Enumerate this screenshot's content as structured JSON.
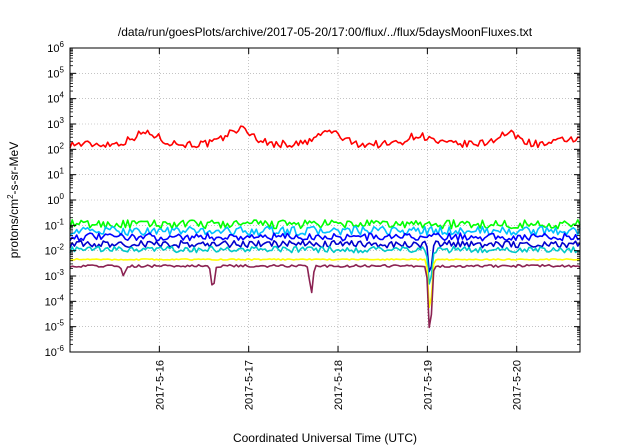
{
  "chart_data": {
    "type": "line",
    "title": "/data/run/goesPlots/archive/2017-05-20/17:00/flux/../flux/5daysMoonFluxes.txt",
    "xlabel": "Coordinated Universal Time (UTC)",
    "ylabel_main": "protons/cm",
    "ylabel_sup": "2",
    "ylabel_rest": "-s-sr-MeV",
    "yscale": "log",
    "ylim": [
      1e-06,
      1000000.0
    ],
    "y_ticks": [
      {
        "exp": "-6",
        "value": 1e-06
      },
      {
        "exp": "-5",
        "value": 1e-05
      },
      {
        "exp": "-4",
        "value": 0.0001
      },
      {
        "exp": "-3",
        "value": 0.001
      },
      {
        "exp": "-2",
        "value": 0.01
      },
      {
        "exp": "-1",
        "value": 0.1
      },
      {
        "exp": "0",
        "value": 1
      },
      {
        "exp": "1",
        "value": 10
      },
      {
        "exp": "2",
        "value": 100
      },
      {
        "exp": "3",
        "value": 1000
      },
      {
        "exp": "4",
        "value": 10000
      },
      {
        "exp": "5",
        "value": 100000
      },
      {
        "exp": "6",
        "value": 1000000
      }
    ],
    "y_tick_base": "10",
    "xlim": [
      "2017-05-15 00:00",
      "2017-05-20 17:00"
    ],
    "x_ticks": [
      "2017-5-16",
      "2017-5-17",
      "2017-5-18",
      "2017-5-19",
      "2017-5-20"
    ],
    "grid": true,
    "series": [
      {
        "color": "#ff0000",
        "base": 160,
        "noise": 0.3,
        "bumps": [
          [
            0.85,
            2.8,
            0.2
          ],
          [
            1.9,
            4.0,
            0.2
          ],
          [
            2.9,
            3.2,
            0.18
          ],
          [
            3.9,
            2.2,
            0.18
          ],
          [
            4.9,
            2.6,
            0.18
          ],
          [
            5.6,
            1.6,
            0.15
          ]
        ],
        "dips": []
      },
      {
        "color": "#00ff00",
        "base": 0.11,
        "noise": 0.35,
        "bumps": [],
        "dips": []
      },
      {
        "color": "#00bfff",
        "base": 0.06,
        "noise": 0.35,
        "bumps": [],
        "dips": []
      },
      {
        "color": "#0000ff",
        "base": 0.035,
        "noise": 0.3,
        "bumps": [],
        "dips": []
      },
      {
        "color": "#0000cd",
        "base": 0.018,
        "noise": 0.28,
        "bumps": [],
        "dips": [
          [
            4.03,
            0.001
          ]
        ]
      },
      {
        "color": "#00c8c8",
        "base": 0.011,
        "noise": 0.25,
        "bumps": [],
        "dips": [
          [
            4.03,
            0.0003
          ]
        ]
      },
      {
        "color": "#ffff00",
        "base": 0.0045,
        "noise": 0.05,
        "bumps": [],
        "dips": [
          [
            4.03,
            3e-05
          ]
        ]
      },
      {
        "color": "#8b2252",
        "base": 0.0025,
        "noise": 0.1,
        "bumps": [],
        "dips": [
          [
            0.6,
            0.001
          ],
          [
            1.6,
            0.0003
          ],
          [
            2.7,
            0.0002
          ],
          [
            4.03,
            4e-06
          ]
        ]
      }
    ]
  }
}
